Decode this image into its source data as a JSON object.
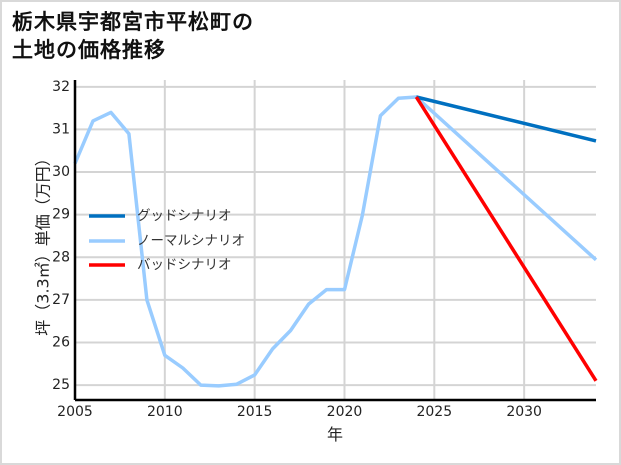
{
  "chart_data": {
    "type": "line",
    "title": "栃木県宇都宮市平松町の\n土地の価格推移",
    "xlabel": "年",
    "ylabel": "坪（3.3㎡）単価（万円）",
    "xlim": [
      2005,
      2034
    ],
    "ylim": [
      24.65,
      32.16
    ],
    "x_ticks": [
      2005,
      2010,
      2015,
      2020,
      2025,
      2030
    ],
    "y_ticks": [
      25,
      26,
      27,
      28,
      29,
      30,
      31,
      32
    ],
    "grid": true,
    "legend_position": "left-middle",
    "series": [
      {
        "name": "グッドシナリオ",
        "color": "#0070C0",
        "x": [
          2024,
          2034
        ],
        "values": [
          31.76,
          30.73
        ]
      },
      {
        "name": "ノーマルシナリオ",
        "color": "#99CCFF",
        "x": [
          2005,
          2006,
          2007,
          2008,
          2009,
          2010,
          2011,
          2012,
          2013,
          2014,
          2015,
          2016,
          2017,
          2018,
          2019,
          2020,
          2021,
          2022,
          2023,
          2024,
          2034
        ],
        "values": [
          30.2,
          31.2,
          31.4,
          30.9,
          27.0,
          25.7,
          25.4,
          25.0,
          24.98,
          25.02,
          25.24,
          25.85,
          26.28,
          26.9,
          27.24,
          27.24,
          28.99,
          31.32,
          31.73,
          31.76,
          27.94
        ]
      },
      {
        "name": "バッドシナリオ",
        "color": "#FF0000",
        "x": [
          2024,
          2034
        ],
        "values": [
          31.76,
          25.1
        ]
      }
    ]
  }
}
